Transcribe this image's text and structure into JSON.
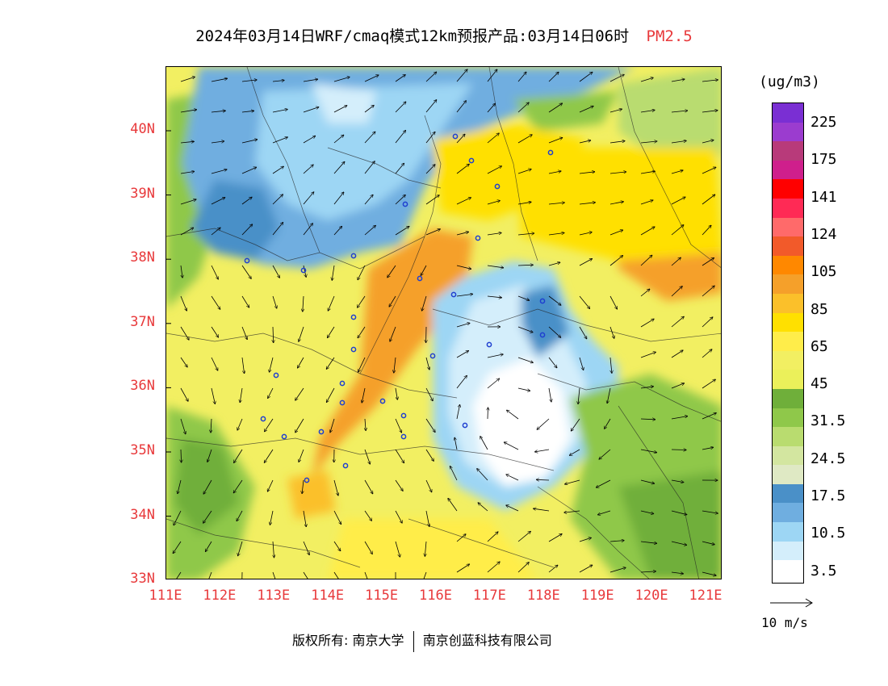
{
  "title": {
    "main": "2024年03月14日WRF/cmaq模式12km预报产品:03月14日06时",
    "pollutant": "PM2.5"
  },
  "axes": {
    "latitudes": [
      "40N",
      "39N",
      "38N",
      "37N",
      "36N",
      "35N",
      "34N",
      "33N"
    ],
    "longitudes": [
      "111E",
      "112E",
      "113E",
      "114E",
      "115E",
      "116E",
      "117E",
      "118E",
      "119E",
      "120E",
      "121E"
    ]
  },
  "colorbar": {
    "unit": "(ug/m3)",
    "labels": [
      "225",
      "175",
      "141",
      "124",
      "105",
      "85",
      "65",
      "45",
      "31.5",
      "24.5",
      "17.5",
      "10.5",
      "3.5"
    ],
    "colors": [
      "#7a2fd3",
      "#9b3ccf",
      "#b83a7a",
      "#cf1f8c",
      "#ff0000",
      "#ff2a55",
      "#ff6a6a",
      "#f25a2a",
      "#ff8800",
      "#f5a02a",
      "#fbc02a",
      "#ffe000",
      "#ffed4a",
      "#f2ef62",
      "#ebf05a",
      "#6faf3a",
      "#8fc84a",
      "#b9dc6f",
      "#d3e6a0",
      "#dfe9c4",
      "#4a90c8",
      "#6faee0",
      "#9dd6f4",
      "#d4eefb",
      "#ffffff"
    ]
  },
  "wind_reference": {
    "label": "10 m/s"
  },
  "footer": {
    "copyright_prefix": "版权所有:",
    "org1": "南京大学",
    "org2": "南京创蓝科技有限公司"
  }
}
